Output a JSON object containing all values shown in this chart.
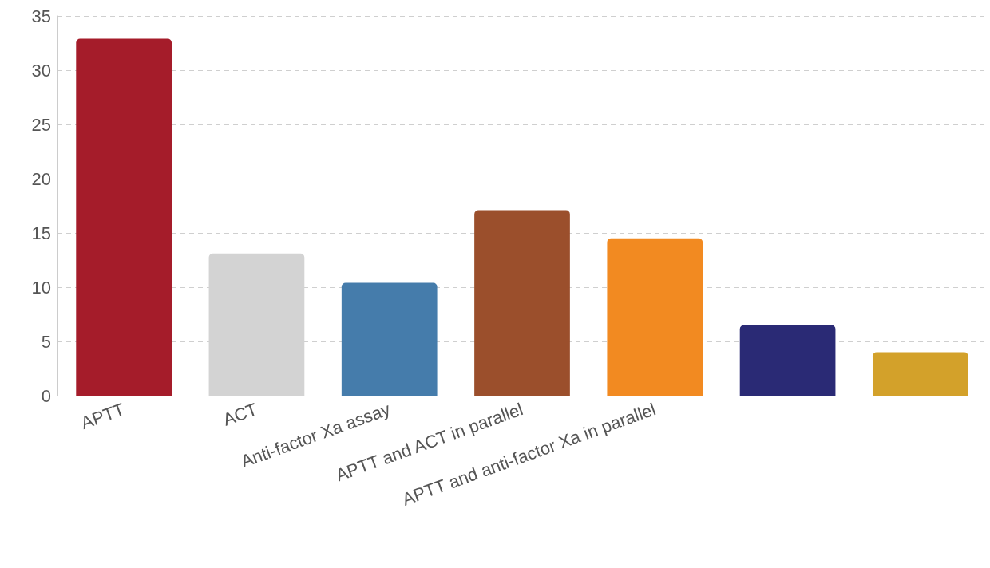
{
  "chart_data": {
    "type": "bar",
    "categories": [
      "APTT",
      "ACT",
      "Anti-factor Xa assay",
      "APTT and ACT in parallel",
      "APTT and anti-factor Xa in parallel",
      null,
      null
    ],
    "values": [
      32.9,
      13.1,
      10.4,
      17.1,
      14.5,
      6.5,
      4.0
    ],
    "colors": [
      "#a51c2a",
      "#d3d3d3",
      "#457cab",
      "#9b4f2c",
      "#f28a21",
      "#2a2a75",
      "#d3a12a"
    ],
    "ylim": [
      0,
      35
    ],
    "yticks": [
      0,
      5,
      10,
      15,
      20,
      25,
      30,
      35
    ],
    "grid": "y"
  }
}
